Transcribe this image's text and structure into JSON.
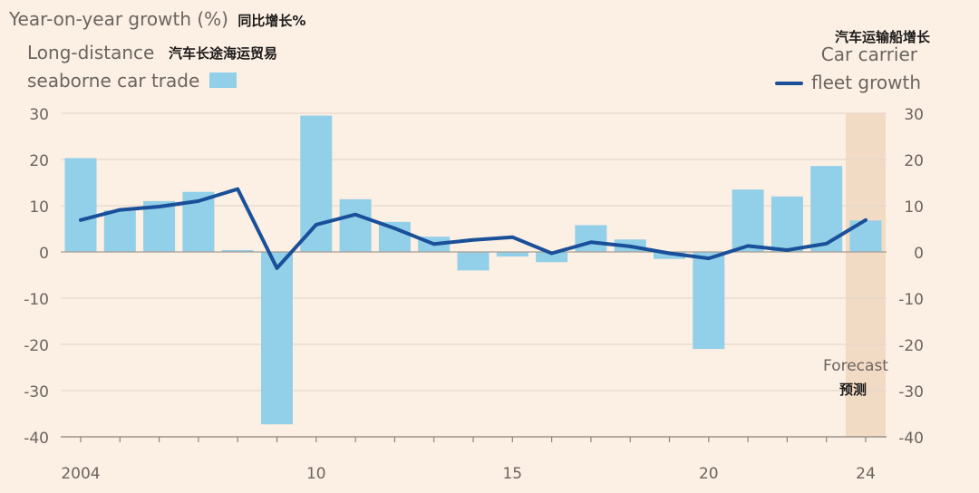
{
  "chart_data": {
    "type": "bar",
    "title": "Year-on-year growth (%)",
    "title_zh": "同比增长%",
    "categories": [
      "2004",
      "2005",
      "2006",
      "2007",
      "2008",
      "2009",
      "2010",
      "2011",
      "2012",
      "2013",
      "2014",
      "2015",
      "2016",
      "2017",
      "2018",
      "2019",
      "2020",
      "2021",
      "2022",
      "2023",
      "2024"
    ],
    "series": [
      {
        "name": "Long-distance seaborne car trade",
        "name_line1": "Long-distance",
        "name_line2": "seaborne car trade",
        "name_zh": "汽车长途海运贸易",
        "type": "bar",
        "color": "#92cfe8",
        "values": [
          20.3,
          9.0,
          11.0,
          13.0,
          0.4,
          -37.3,
          29.5,
          11.4,
          6.5,
          3.3,
          -4.0,
          -1.0,
          -2.2,
          5.8,
          2.7,
          -1.5,
          -21.0,
          13.5,
          12.0,
          18.6,
          6.8
        ]
      },
      {
        "name": "Car carrier fleet growth",
        "name_line1": "Car carrier",
        "name_line2": "fleet growth",
        "name_zh": "汽车运输船增长",
        "type": "line",
        "color": "#1a4f99",
        "values": [
          6.9,
          9.1,
          9.8,
          11.0,
          13.6,
          -3.5,
          5.9,
          8.1,
          5.1,
          1.7,
          2.6,
          3.2,
          -0.3,
          2.1,
          1.2,
          -0.3,
          -1.4,
          1.3,
          0.4,
          1.8,
          6.9
        ]
      }
    ],
    "ylim": [
      -40,
      30
    ],
    "yticks": [
      "30",
      "20",
      "10",
      "0",
      "-10",
      "-20",
      "-30",
      "-40"
    ],
    "xtick_labels": [
      {
        "category": "2004",
        "label": "2004"
      },
      {
        "category": "2010",
        "label": "10"
      },
      {
        "category": "2015",
        "label": "15"
      },
      {
        "category": "2020",
        "label": "20"
      },
      {
        "category": "2024",
        "label": "24"
      }
    ],
    "forecast_category": "2024",
    "forecast_label": "Forecast",
    "forecast_label_zh": "预测",
    "grid": true,
    "colors": {
      "background": "#fcefe4",
      "forecast_band": "#f2dbc5",
      "gridline": "#e6d8cb",
      "zero_line": "#a69c93"
    }
  }
}
